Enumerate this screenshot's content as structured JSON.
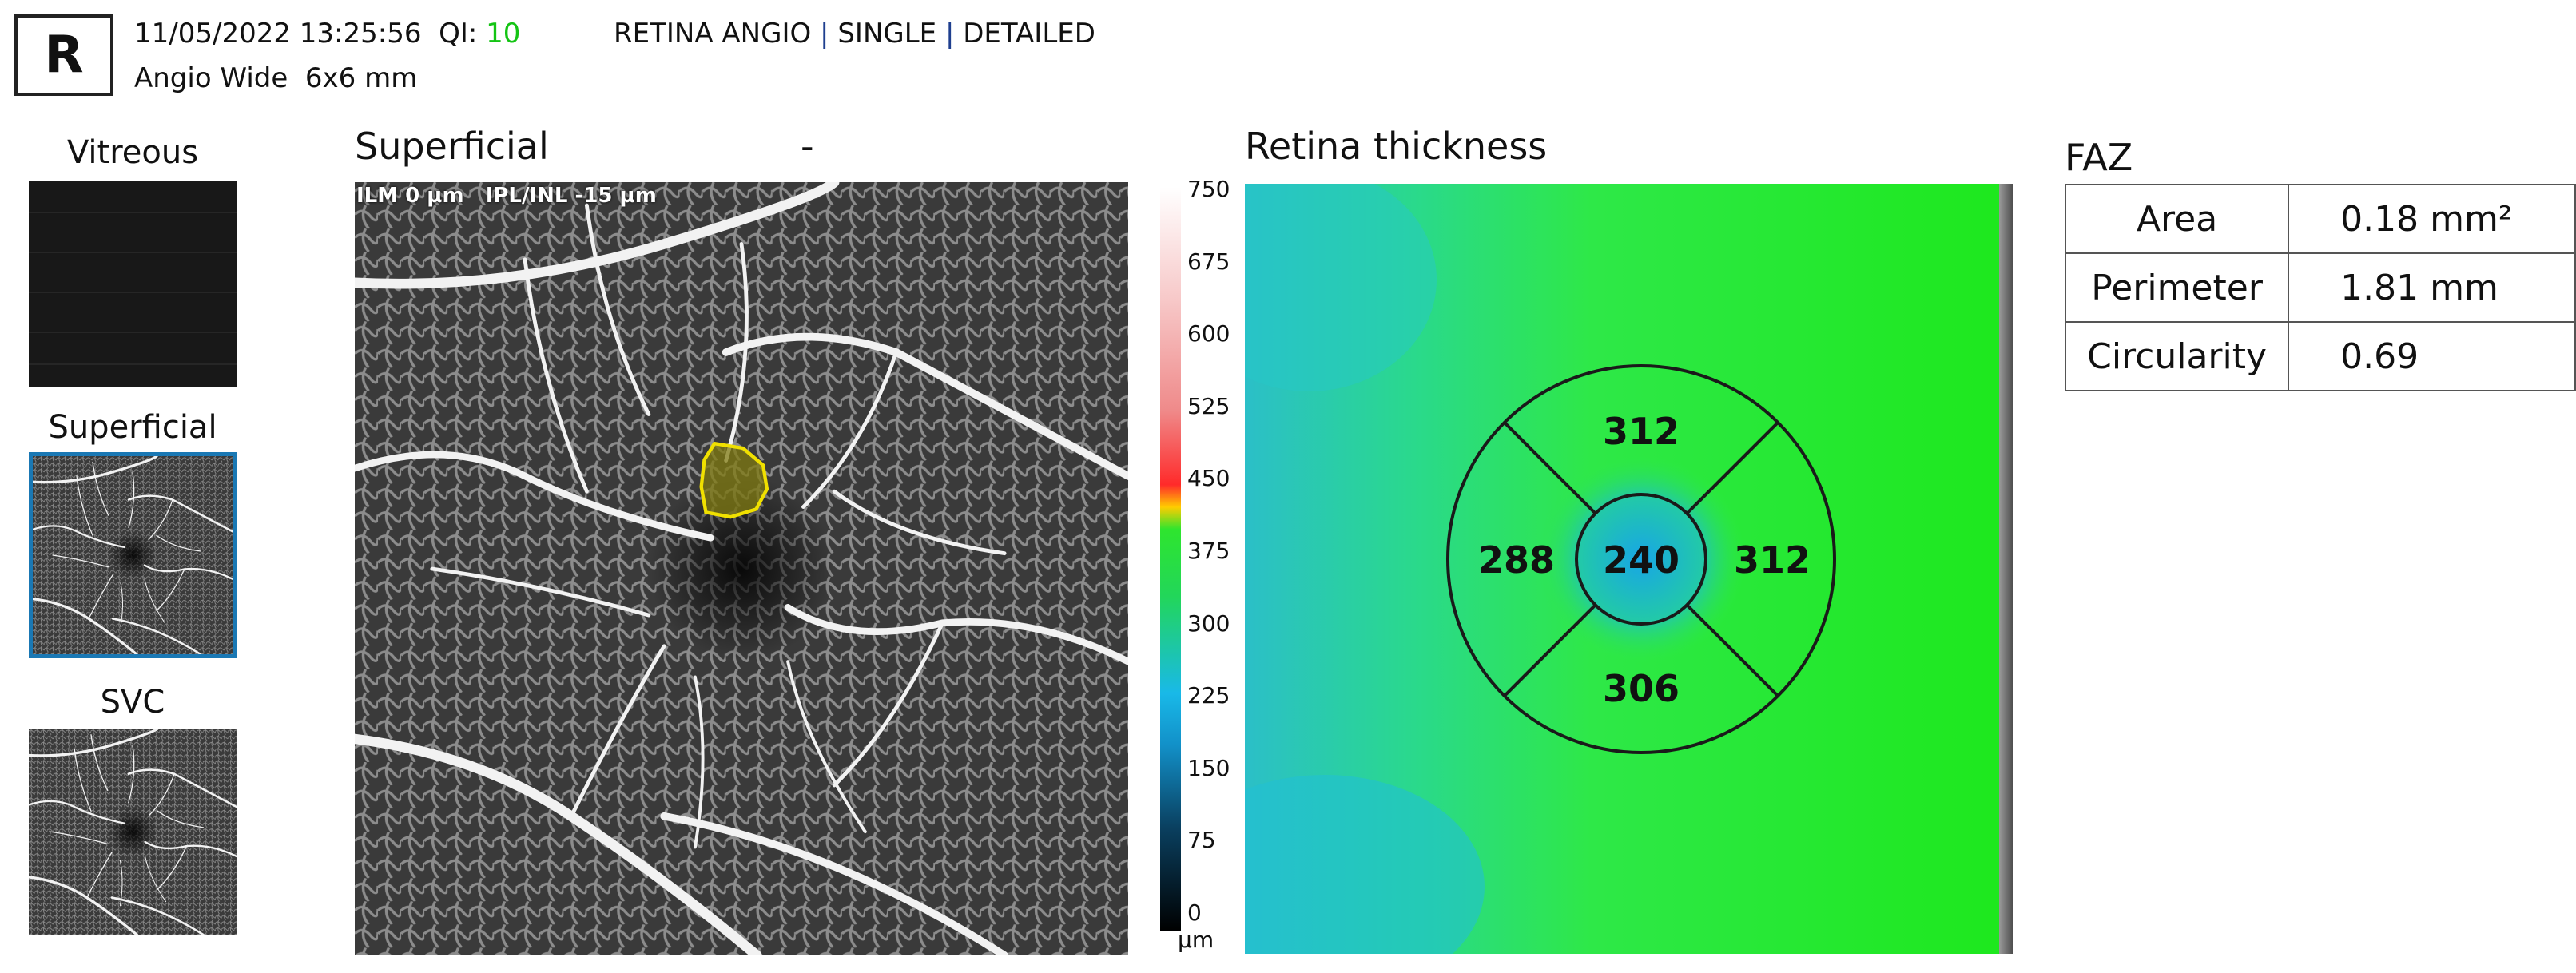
{
  "header": {
    "eye": "R",
    "datetime": "11/05/2022 13:25:56",
    "qi_label": "QI:",
    "qi_value": "10",
    "scan": "Angio Wide  6x6 mm",
    "mode_parts": [
      "RETINA ANGIO",
      "SINGLE",
      "DETAILED"
    ],
    "separator": "|"
  },
  "thumbnails": [
    {
      "label": "Vitreous",
      "selected": false
    },
    {
      "label": "Superficial",
      "selected": true
    },
    {
      "label": "SVC",
      "selected": false
    }
  ],
  "angio": {
    "title": "Superficial",
    "dash": "-",
    "segmentation": "ILM 0 µm   IPL/INL -15 µm"
  },
  "scale": {
    "ticks": [
      "750",
      "675",
      "600",
      "525",
      "450",
      "375",
      "300",
      "225",
      "150",
      "75",
      "0"
    ],
    "unit": "µm"
  },
  "thickness": {
    "title": "Retina thickness",
    "sectors": {
      "superior": "312",
      "nasal": "288",
      "center": "240",
      "temporal": "312",
      "inferior": "306"
    }
  },
  "faz": {
    "title": "FAZ",
    "rows": [
      {
        "label": "Area",
        "value": "0.18",
        "unit": "mm²"
      },
      {
        "label": "Perimeter",
        "value": "1.81",
        "unit": "mm"
      },
      {
        "label": "Circularity",
        "value": "0.69",
        "unit": ""
      }
    ]
  },
  "colors": {
    "qi": "#14c414",
    "selected_border": "#1a78b4",
    "faz_outline": "#f0e000"
  }
}
